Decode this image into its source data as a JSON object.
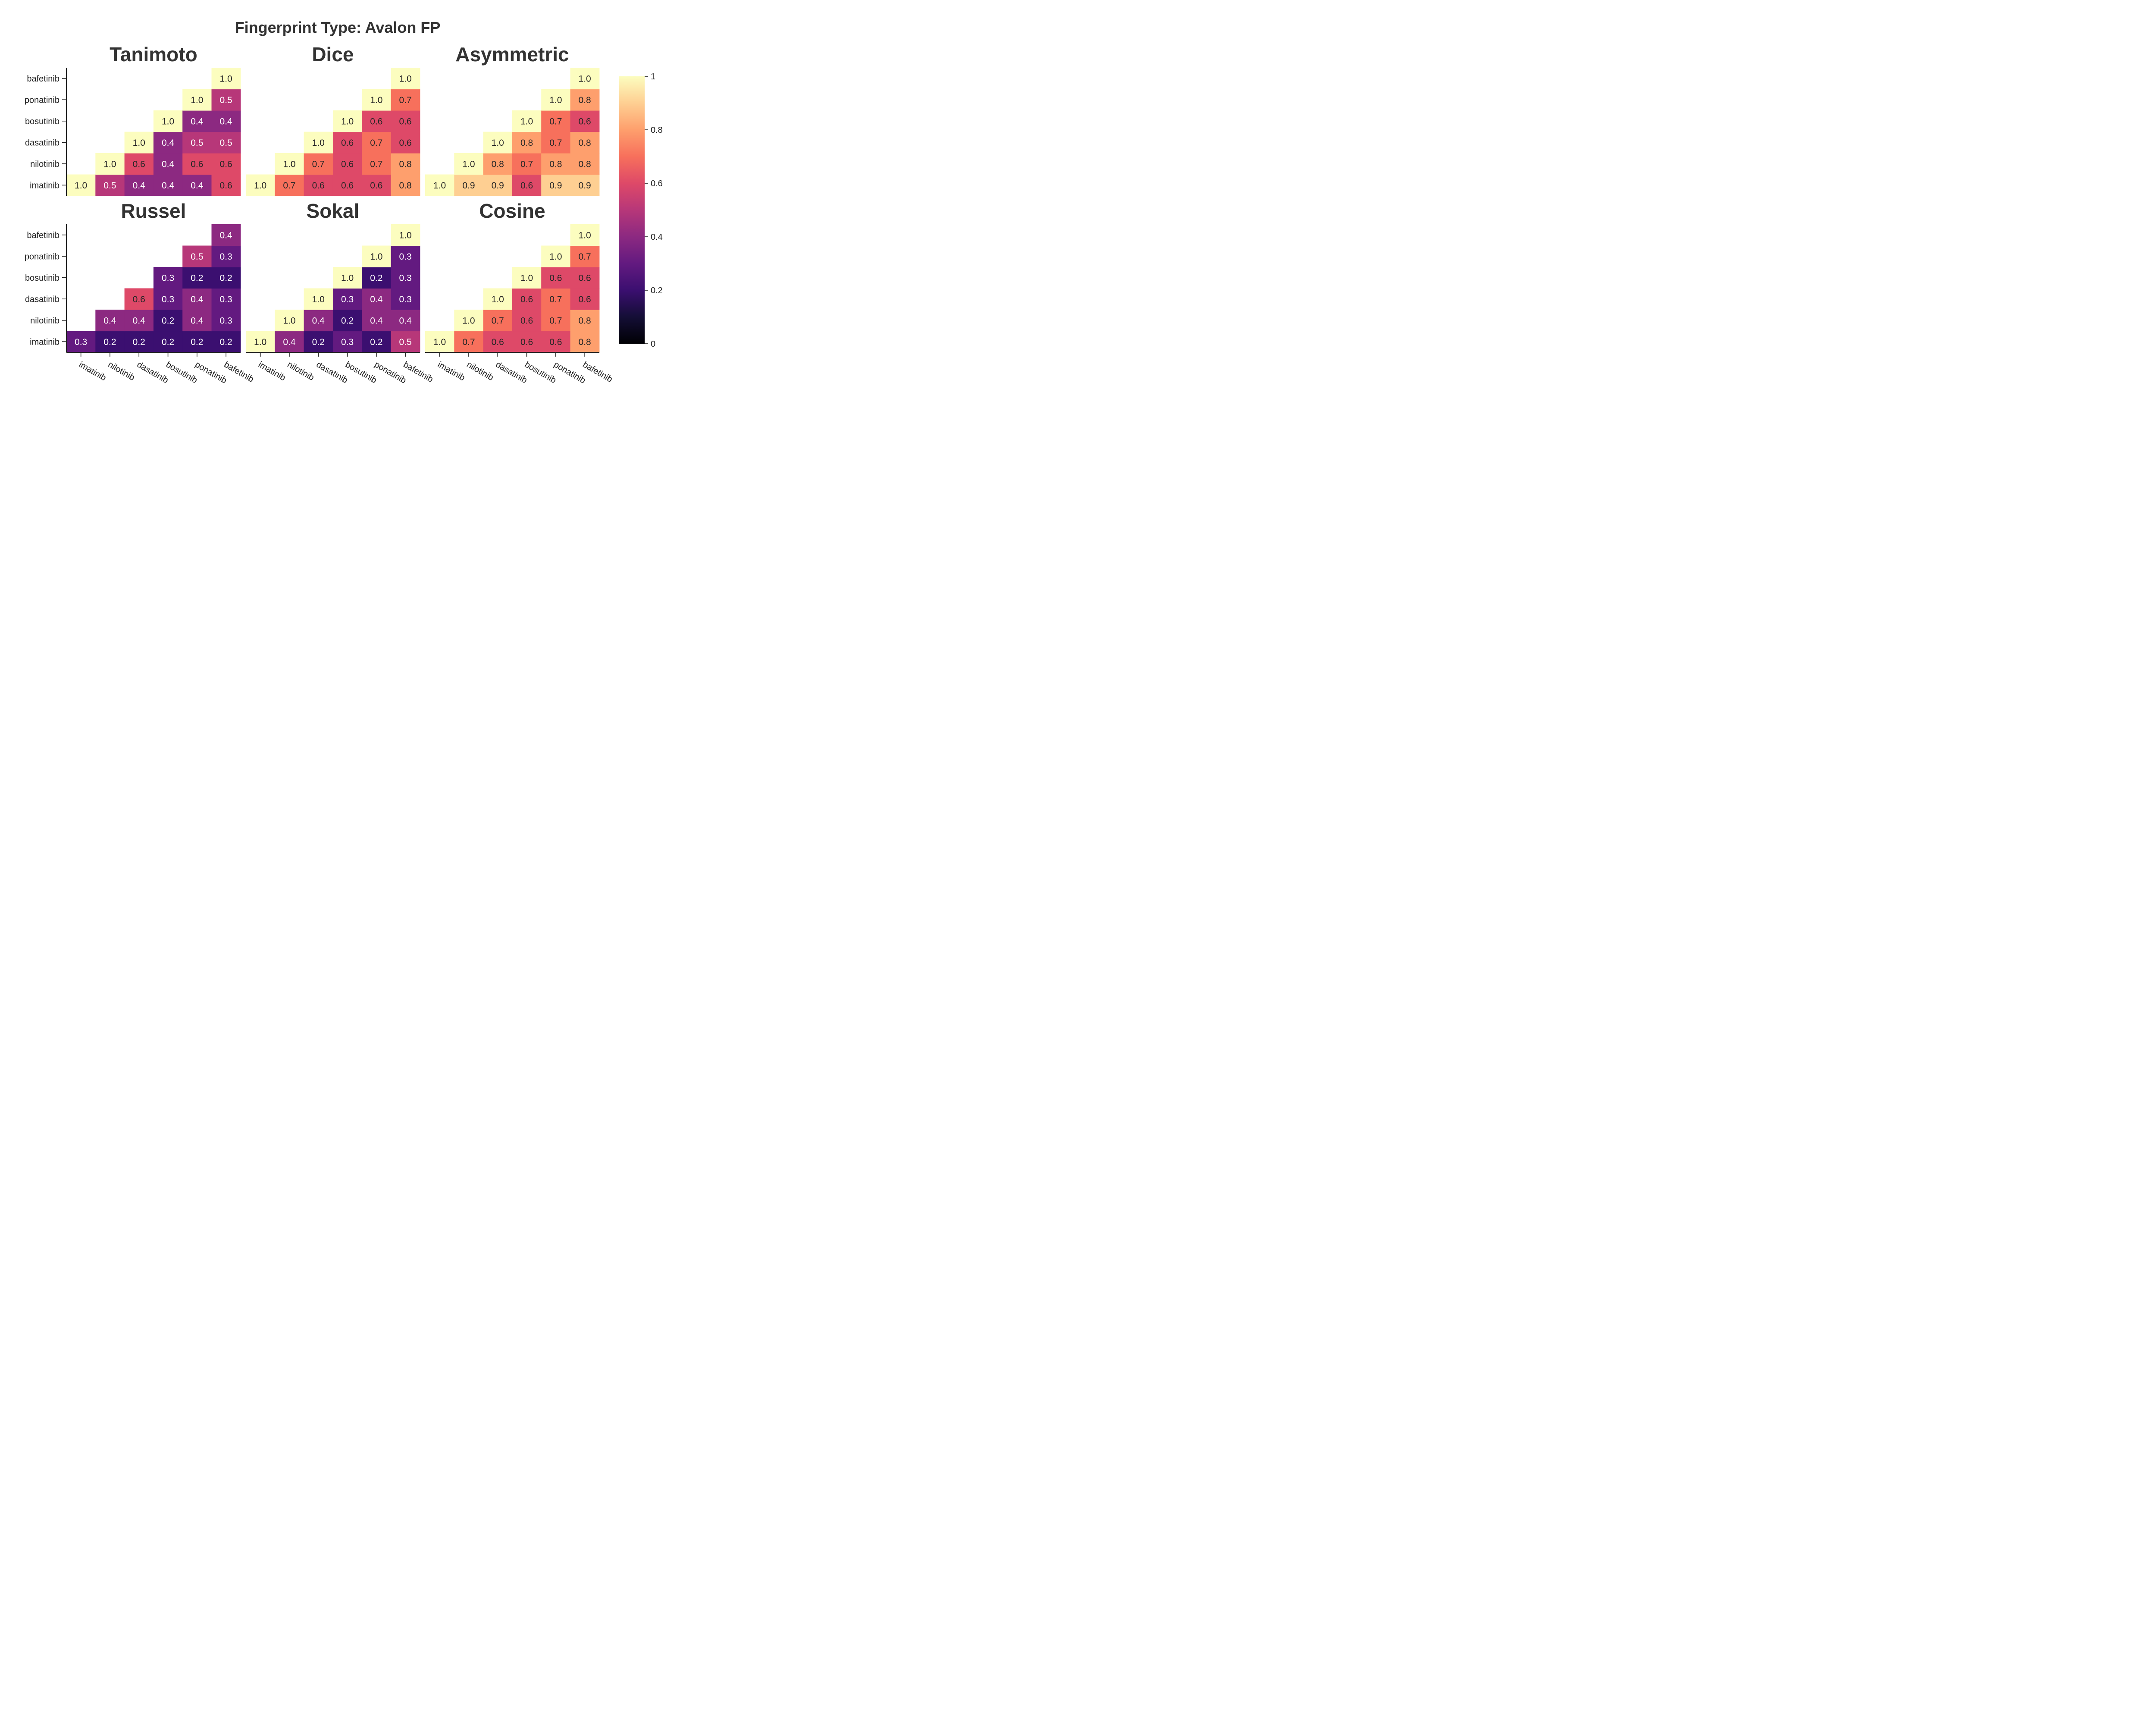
{
  "chart_data": {
    "type": "heatmap",
    "title": "Fingerprint Type: Avalon FP",
    "labels": [
      "imatinib",
      "nilotinib",
      "dasatinib",
      "bosutinib",
      "ponatinib",
      "bafetinib"
    ],
    "colormap": "magma",
    "colorbar": {
      "range": [
        0,
        1
      ],
      "ticks": [
        "0",
        "0.2",
        "0.4",
        "0.6",
        "0.8",
        "1"
      ]
    },
    "panels": [
      {
        "title": "Tanimoto",
        "matrix": [
          [
            1.0,
            0.5,
            0.4,
            0.4,
            0.4,
            0.6
          ],
          [
            null,
            1.0,
            0.6,
            0.4,
            0.6,
            0.6
          ],
          [
            null,
            null,
            1.0,
            0.4,
            0.5,
            0.5
          ],
          [
            null,
            null,
            null,
            1.0,
            0.4,
            0.4
          ],
          [
            null,
            null,
            null,
            null,
            1.0,
            0.5
          ],
          [
            null,
            null,
            null,
            null,
            null,
            1.0
          ]
        ]
      },
      {
        "title": "Dice",
        "matrix": [
          [
            1.0,
            0.7,
            0.6,
            0.6,
            0.6,
            0.8
          ],
          [
            null,
            1.0,
            0.7,
            0.6,
            0.7,
            0.8
          ],
          [
            null,
            null,
            1.0,
            0.6,
            0.7,
            0.6
          ],
          [
            null,
            null,
            null,
            1.0,
            0.6,
            0.6
          ],
          [
            null,
            null,
            null,
            null,
            1.0,
            0.7
          ],
          [
            null,
            null,
            null,
            null,
            null,
            1.0
          ]
        ]
      },
      {
        "title": "Asymmetric",
        "matrix": [
          [
            1.0,
            0.9,
            0.9,
            0.6,
            0.9,
            0.9
          ],
          [
            null,
            1.0,
            0.8,
            0.7,
            0.8,
            0.8
          ],
          [
            null,
            null,
            1.0,
            0.8,
            0.7,
            0.8
          ],
          [
            null,
            null,
            null,
            1.0,
            0.7,
            0.6
          ],
          [
            null,
            null,
            null,
            null,
            1.0,
            0.8
          ],
          [
            null,
            null,
            null,
            null,
            null,
            1.0
          ]
        ]
      },
      {
        "title": "Russel",
        "matrix": [
          [
            0.3,
            0.2,
            0.2,
            0.2,
            0.2,
            0.2
          ],
          [
            null,
            0.4,
            0.4,
            0.2,
            0.4,
            0.3
          ],
          [
            null,
            null,
            0.6,
            0.3,
            0.4,
            0.3
          ],
          [
            null,
            null,
            null,
            0.3,
            0.2,
            0.2
          ],
          [
            null,
            null,
            null,
            null,
            0.5,
            0.3
          ],
          [
            null,
            null,
            null,
            null,
            null,
            0.4
          ]
        ]
      },
      {
        "title": "Sokal",
        "matrix": [
          [
            1.0,
            0.4,
            0.2,
            0.3,
            0.2,
            0.5
          ],
          [
            null,
            1.0,
            0.4,
            0.2,
            0.4,
            0.4
          ],
          [
            null,
            null,
            1.0,
            0.3,
            0.4,
            0.3
          ],
          [
            null,
            null,
            null,
            1.0,
            0.2,
            0.3
          ],
          [
            null,
            null,
            null,
            null,
            1.0,
            0.3
          ],
          [
            null,
            null,
            null,
            null,
            null,
            1.0
          ]
        ]
      },
      {
        "title": "Cosine",
        "matrix": [
          [
            1.0,
            0.7,
            0.6,
            0.6,
            0.6,
            0.8
          ],
          [
            null,
            1.0,
            0.7,
            0.6,
            0.7,
            0.8
          ],
          [
            null,
            null,
            1.0,
            0.6,
            0.7,
            0.6
          ],
          [
            null,
            null,
            null,
            1.0,
            0.6,
            0.6
          ],
          [
            null,
            null,
            null,
            null,
            1.0,
            0.7
          ],
          [
            null,
            null,
            null,
            null,
            null,
            1.0
          ]
        ]
      }
    ]
  }
}
